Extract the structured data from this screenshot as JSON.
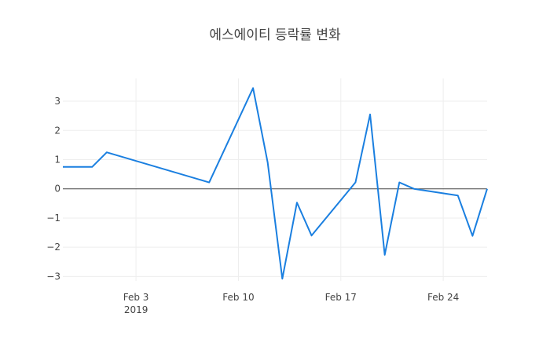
{
  "chart_data": {
    "type": "line",
    "title": "에스에이티 등락률 변화",
    "x": [
      "2019-01-29",
      "2019-01-30",
      "2019-01-31",
      "2019-02-01",
      "2019-02-08",
      "2019-02-11",
      "2019-02-12",
      "2019-02-13",
      "2019-02-14",
      "2019-02-15",
      "2019-02-18",
      "2019-02-19",
      "2019-02-20",
      "2019-02-21",
      "2019-02-22",
      "2019-02-25",
      "2019-02-26",
      "2019-02-27"
    ],
    "series": [
      {
        "color": "#1a7fe0",
        "values": [
          0.75,
          0.75,
          0.75,
          1.25,
          0.22,
          3.45,
          0.9,
          -3.08,
          -0.47,
          -1.6,
          0.22,
          2.55,
          -2.26,
          0.22,
          0,
          -0.23,
          -1.61,
          0
        ]
      }
    ],
    "xlim": [
      "2019-01-29",
      "2019-02-27"
    ],
    "xticks": [
      {
        "value": "2019-02-03",
        "label": "Feb 3\n2019"
      },
      {
        "value": "2019-02-10",
        "label": "Feb 10"
      },
      {
        "value": "2019-02-17",
        "label": "Feb 17"
      },
      {
        "value": "2019-02-24",
        "label": "Feb 24"
      }
    ],
    "ylim": [
      -3.15,
      3.78
    ],
    "yticks": [
      {
        "value": -3,
        "label": "−3"
      },
      {
        "value": -2,
        "label": "−2"
      },
      {
        "value": -1,
        "label": "−1"
      },
      0,
      1,
      2,
      3
    ],
    "grid": true
  }
}
